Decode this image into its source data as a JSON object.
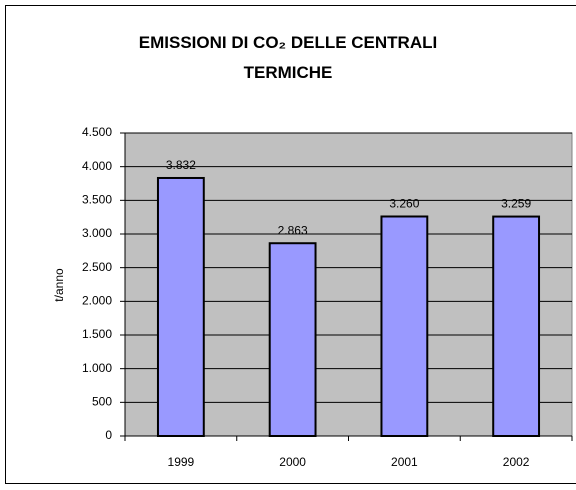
{
  "chart_data": {
    "type": "bar",
    "title": "EMISSIONI DI CO₂ DELLE CENTRALI TERMICHE",
    "y_label": "t/anno",
    "categories": [
      "1999",
      "2000",
      "2001",
      "2002"
    ],
    "values": [
      3832,
      2863,
      3260,
      3259
    ],
    "value_labels": [
      "3.832",
      "2.863",
      "3.260",
      "3.259"
    ],
    "color": "#9999ff",
    "ylim": [
      0,
      4500
    ],
    "yticks": [
      0,
      500,
      {
        "value": 1000,
        "label": "1.000"
      },
      {
        "value": 1500,
        "label": "1.500"
      },
      {
        "value": 2000,
        "label": "2.000"
      },
      {
        "value": 2500,
        "label": "2.500"
      },
      {
        "value": 3000,
        "label": "3.000"
      },
      {
        "value": 3500,
        "label": "3.500"
      },
      {
        "value": 4000,
        "label": "4.000"
      },
      {
        "value": 4500,
        "label": "4.500"
      }
    ],
    "grid": true
  }
}
